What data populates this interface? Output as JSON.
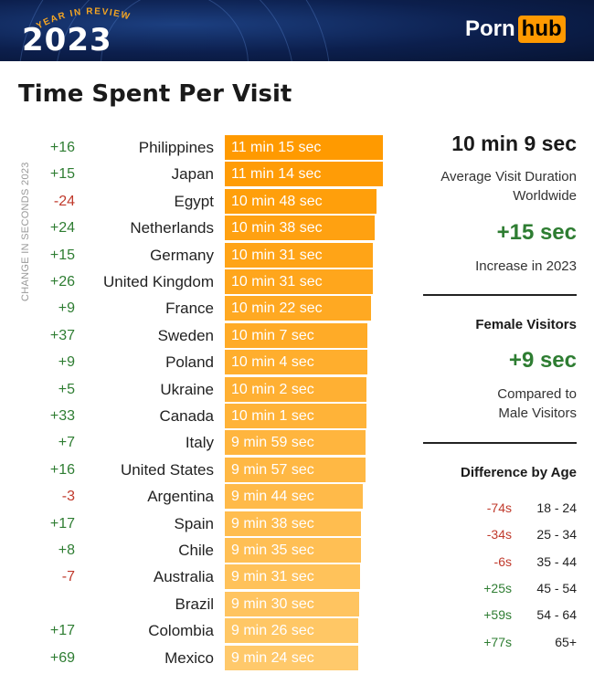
{
  "header": {
    "year_in_review": "YEAR IN REVIEW",
    "year": "2023",
    "logo_left": "Porn",
    "logo_right": "hub",
    "banner_color": "#0c1f4d",
    "logo_accent": "#ff9900"
  },
  "title": "Time Spent Per Visit",
  "side_label": "CHANGE IN SECONDS 2023",
  "colors": {
    "positive": "#2e7d32",
    "negative": "#c0392b",
    "bar_dark": "#ff9a00",
    "bar_light": "#ffc96b"
  },
  "chart_data": {
    "type": "bar",
    "orientation": "horizontal",
    "categories": [
      "Philippines",
      "Japan",
      "Egypt",
      "Netherlands",
      "Germany",
      "United Kingdom",
      "France",
      "Sweden",
      "Poland",
      "Ukraine",
      "Canada",
      "Italy",
      "United States",
      "Argentina",
      "Spain",
      "Chile",
      "Australia",
      "Brazil",
      "Colombia",
      "Mexico"
    ],
    "value_labels": [
      "11 min 15 sec",
      "11 min 14 sec",
      "10 min 48 sec",
      "10 min 38 sec",
      "10 min 31 sec",
      "10 min 31 sec",
      "10 min 22 sec",
      "10 min 7 sec",
      "10 min 4 sec",
      "10 min 2 sec",
      "10 min 1 sec",
      "9 min 59 sec",
      "9 min 57 sec",
      "9 min 44 sec",
      "9 min 38 sec",
      "9 min 35 sec",
      "9 min 31 sec",
      "9 min 30 sec",
      "9 min 26 sec",
      "9 min 24 sec"
    ],
    "values_seconds": [
      675,
      674,
      648,
      638,
      631,
      631,
      622,
      607,
      604,
      602,
      601,
      599,
      597,
      584,
      578,
      575,
      571,
      570,
      566,
      564
    ],
    "change_labels": [
      "+16",
      "+15",
      "-24",
      "+24",
      "+15",
      "+26",
      "+9",
      "+37",
      "+9",
      "+5",
      "+33",
      "+7",
      "+16",
      "-3",
      "+17",
      "+8",
      "-7",
      "",
      "+17",
      "+69"
    ],
    "change_seconds": [
      16,
      15,
      -24,
      24,
      15,
      26,
      9,
      37,
      9,
      5,
      33,
      7,
      16,
      -3,
      17,
      8,
      -7,
      null,
      17,
      69
    ]
  },
  "summary": {
    "avg_value": "10 min 9 sec",
    "avg_label_1": "Average Visit Duration",
    "avg_label_2": "Worldwide",
    "increase_value": "+15 sec",
    "increase_label": "Increase in 2023",
    "female_heading": "Female Visitors",
    "female_value": "+9 sec",
    "female_label_1": "Compared to",
    "female_label_2": "Male Visitors",
    "age_heading": "Difference by Age",
    "age_rows": [
      {
        "value": "-74s",
        "label": "18 - 24"
      },
      {
        "value": "-34s",
        "label": "25 - 34"
      },
      {
        "value": "-6s",
        "label": "35 - 44"
      },
      {
        "value": "+25s",
        "label": "45 - 54"
      },
      {
        "value": "+59s",
        "label": "54 - 64"
      },
      {
        "value": "+77s",
        "label": "65+"
      }
    ]
  }
}
